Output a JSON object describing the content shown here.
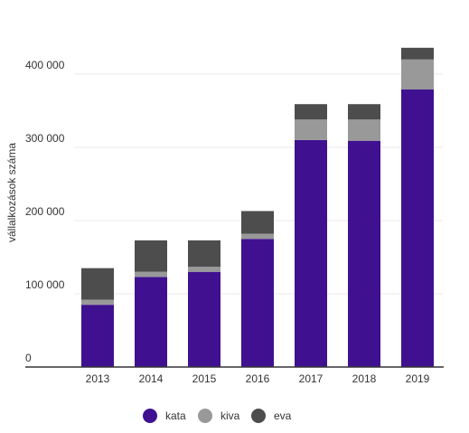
{
  "chart_data": {
    "type": "bar",
    "stacked": true,
    "categories": [
      "2013",
      "2014",
      "2015",
      "2016",
      "2017",
      "2018",
      "2019"
    ],
    "series": [
      {
        "name": "kata",
        "color": "#3f1190",
        "values": [
          85000,
          123000,
          130000,
          175000,
          310000,
          309000,
          379000
        ]
      },
      {
        "name": "kiva",
        "color": "#999999",
        "values": [
          7000,
          7000,
          7000,
          7000,
          28000,
          29000,
          41000
        ]
      },
      {
        "name": "eva",
        "color": "#4d4d4d",
        "values": [
          43000,
          43000,
          36000,
          31000,
          21000,
          21000,
          16000
        ]
      }
    ],
    "title": "",
    "xlabel": "",
    "ylabel": "vállalkozások száma",
    "ylim": [
      0,
      400000
    ],
    "yticks": [
      {
        "value": 0,
        "label": "0"
      },
      {
        "value": 100000,
        "label": "100 000"
      },
      {
        "value": 200000,
        "label": "200 000"
      },
      {
        "value": 300000,
        "label": "300 000"
      },
      {
        "value": 400000,
        "label": "400 000"
      }
    ],
    "grid": true,
    "legend": "bottom"
  }
}
